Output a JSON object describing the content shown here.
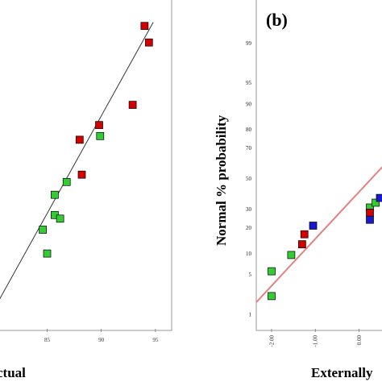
{
  "colors": {
    "red": "#d40000",
    "green": "#33cc33",
    "blue": "#1a1acc",
    "fit_line_a": "#333333",
    "fit_line_b": "#e58080",
    "frame": "#9a9a9a",
    "marker_edge": "#000000"
  },
  "chart_data": [
    {
      "panel": "a",
      "type": "scatter",
      "title": "",
      "xlabel": "ctual",
      "ylabel": "",
      "xlim": [
        80.5,
        96.5
      ],
      "ylim": [
        77.5,
        95.5
      ],
      "xticks": [
        85,
        90,
        95
      ],
      "xtick_labels": [
        "85",
        "90",
        "95"
      ],
      "grid": false,
      "legend": "none",
      "fit_line": {
        "x": [
          80.5,
          94.8
        ],
        "y": [
          79.0,
          94.2
        ]
      },
      "series": [
        {
          "color": "red",
          "points": [
            {
              "x": 94.0,
              "y": 94.0
            },
            {
              "x": 94.4,
              "y": 93.1
            },
            {
              "x": 92.9,
              "y": 89.7
            },
            {
              "x": 89.8,
              "y": 88.6
            },
            {
              "x": 88.0,
              "y": 87.8
            },
            {
              "x": 88.2,
              "y": 85.9
            }
          ]
        },
        {
          "color": "green",
          "points": [
            {
              "x": 89.9,
              "y": 88.0
            },
            {
              "x": 86.8,
              "y": 85.5
            },
            {
              "x": 85.7,
              "y": 84.8
            },
            {
              "x": 85.7,
              "y": 83.7
            },
            {
              "x": 86.2,
              "y": 83.5
            },
            {
              "x": 84.6,
              "y": 82.9
            },
            {
              "x": 85.0,
              "y": 81.6
            }
          ]
        }
      ]
    },
    {
      "panel": "b",
      "type": "scatter",
      "panel_label": "(b)",
      "title": "",
      "xlabel": "Externally",
      "ylabel": "Normal % probability",
      "xlim": [
        -2.35,
        0.6
      ],
      "ylim_percent": [
        0.5,
        99.9
      ],
      "y_scale": "normal-probability",
      "yticks": [
        1,
        5,
        10,
        20,
        30,
        50,
        70,
        80,
        90,
        95,
        99
      ],
      "ytick_labels": [
        "1",
        "5",
        "10",
        "20",
        "30",
        "50",
        "70",
        "80",
        "90",
        "95",
        "99"
      ],
      "xticks": [
        -2.0,
        -1.0,
        0.0
      ],
      "xtick_labels": [
        "-2.00",
        "-1.00",
        "0.00"
      ],
      "grid": false,
      "legend": "none",
      "fit_line": {
        "x": [
          -2.35,
          0.6
        ],
        "y_percent": [
          1.7,
          60
        ]
      },
      "series": [
        {
          "color": "green",
          "points": [
            {
              "x": -2.0,
              "y_percent": 2.2
            },
            {
              "x": -2.0,
              "y_percent": 5.6
            },
            {
              "x": -1.55,
              "y_percent": 9.5
            },
            {
              "x": 0.25,
              "y_percent": 31
            },
            {
              "x": 0.38,
              "y_percent": 34
            }
          ]
        },
        {
          "color": "red",
          "points": [
            {
              "x": -1.3,
              "y_percent": 13
            },
            {
              "x": -1.25,
              "y_percent": 17
            },
            {
              "x": 0.25,
              "y_percent": 28
            }
          ]
        },
        {
          "color": "blue",
          "points": [
            {
              "x": -1.05,
              "y_percent": 21
            },
            {
              "x": 0.25,
              "y_percent": 24
            },
            {
              "x": 0.48,
              "y_percent": 37
            }
          ]
        }
      ]
    }
  ]
}
